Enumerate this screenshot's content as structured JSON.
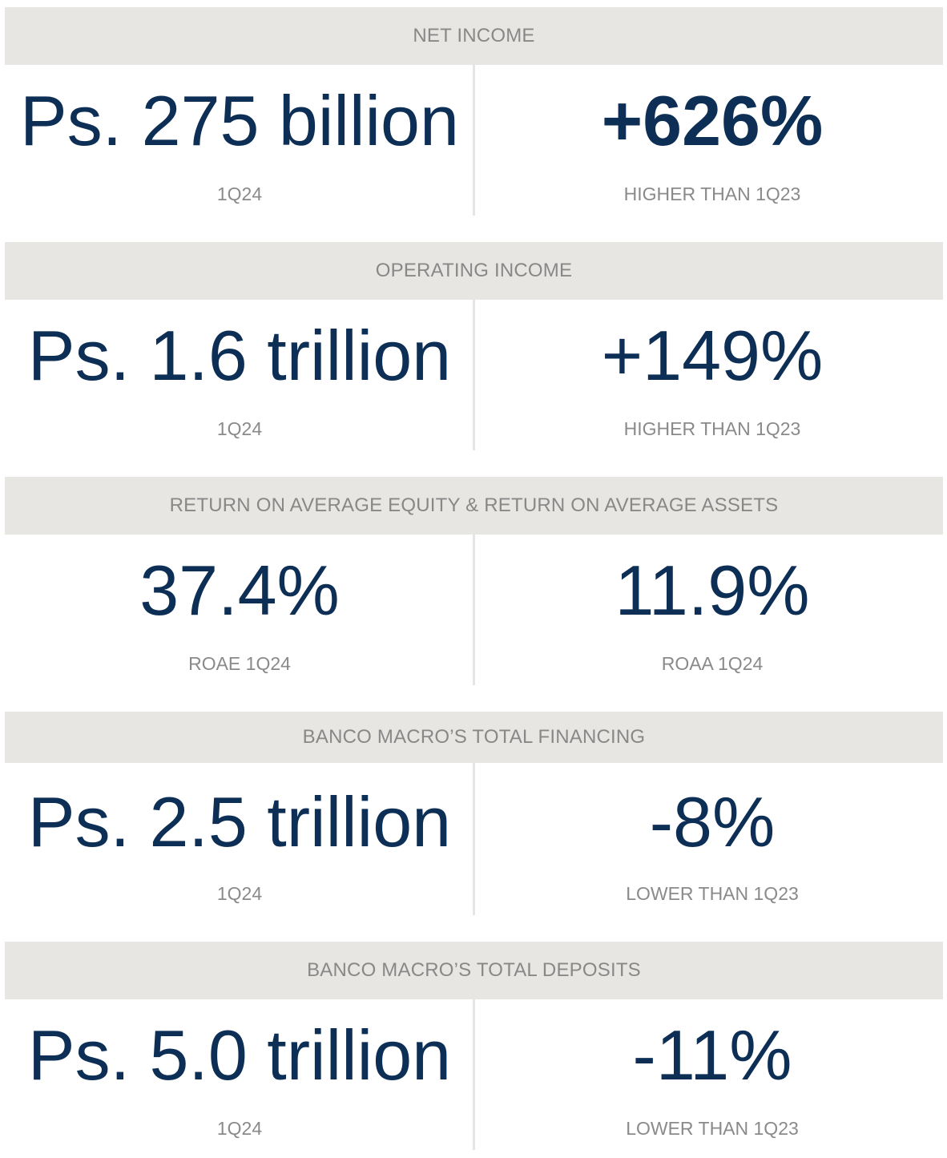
{
  "sections": [
    {
      "header": "NET INCOME",
      "left": {
        "value": "Ps. 275 billion",
        "label": "1Q24"
      },
      "right": {
        "value": "+626%",
        "label": "HIGHER THAN 1Q23"
      }
    },
    {
      "header": "OPERATING INCOME",
      "left": {
        "value": "Ps. 1.6 trillion",
        "label": "1Q24"
      },
      "right": {
        "value": "+149%",
        "label": "HIGHER THAN 1Q23"
      }
    },
    {
      "header": "RETURN ON AVERAGE EQUITY & RETURN ON AVERAGE ASSETS",
      "left": {
        "value": "37.4%",
        "label": "ROAE 1Q24"
      },
      "right": {
        "value": "11.9%",
        "label": "ROAA 1Q24"
      }
    },
    {
      "header": "BANCO MACRO’S TOTAL FINANCING",
      "left": {
        "value": "Ps. 2.5 trillion",
        "label": "1Q24"
      },
      "right": {
        "value": "-8%",
        "label": "LOWER THAN 1Q23"
      }
    },
    {
      "header": "BANCO MACRO’S TOTAL DEPOSITS",
      "left": {
        "value": "Ps. 5.0 trillion",
        "label": "1Q24"
      },
      "right": {
        "value": "-11%",
        "label": "LOWER THAN 1Q23"
      }
    }
  ],
  "colors": {
    "header_background": "#e8e6e3",
    "header_text": "#888888",
    "value_text": "#0d2e55",
    "label_text": "#8a8a8a",
    "divider": "#e5e5e5"
  }
}
